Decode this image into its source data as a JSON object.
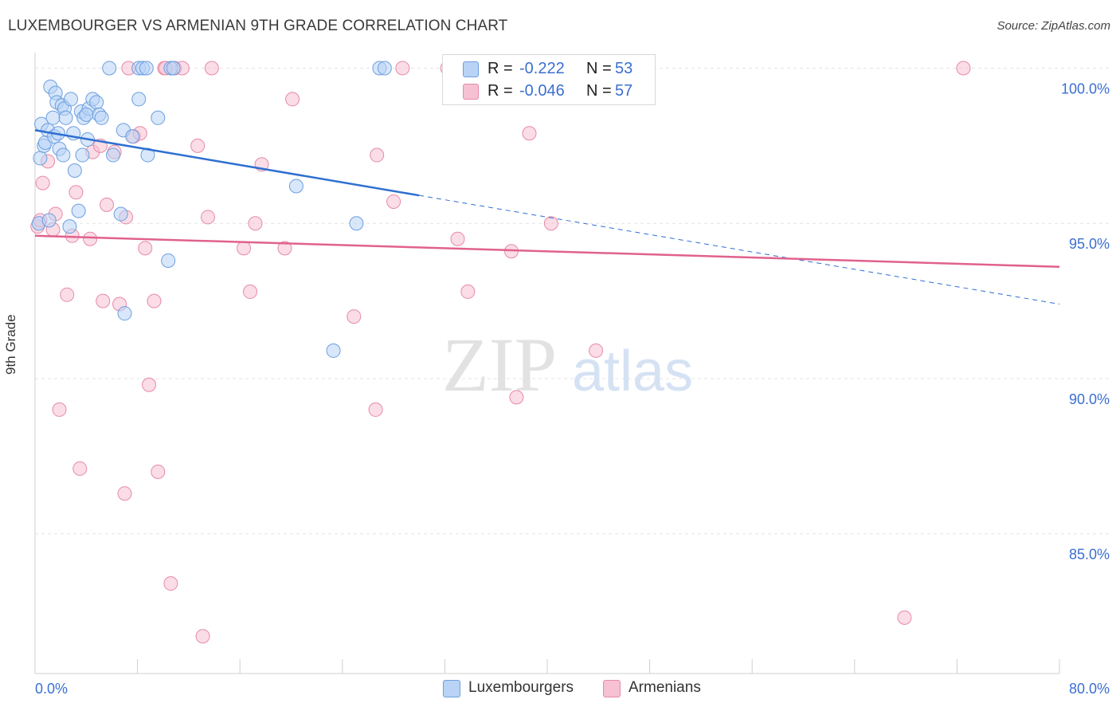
{
  "title": "LUXEMBOURGER VS ARMENIAN 9TH GRADE CORRELATION CHART",
  "source": "Source: ZipAtlas.com",
  "watermark": {
    "zip": "ZIP",
    "atlas": "atlas"
  },
  "colors": {
    "blue_fill": "#b8d3f5",
    "blue_stroke": "#6d9fdf",
    "blue_line": "#2f6fd0",
    "pink_fill": "#f6c1d2",
    "pink_stroke": "#e78aa8",
    "pink_line": "#e0628c",
    "tick_label": "#3b6fd0",
    "grid": "#e3e3e3"
  },
  "legend": {
    "r_label": "R =",
    "n_label": "N =",
    "series": [
      {
        "name": "Luxembourgers",
        "r": "-0.222",
        "n": "53",
        "color": "#b8d3f5",
        "border": "#6d9fdf"
      },
      {
        "name": "Armenians",
        "r": "-0.046",
        "n": "57",
        "color": "#f6c1d2",
        "border": "#e78aa8"
      }
    ]
  },
  "chart_data": {
    "type": "scatter",
    "title": "LUXEMBOURGER VS ARMENIAN 9TH GRADE CORRELATION CHART",
    "xlabel": "",
    "ylabel": "9th Grade",
    "xlim": [
      0,
      80
    ],
    "ylim": [
      80.5,
      100.5
    ],
    "x_tick_labels": [
      "0.0%",
      "80.0%"
    ],
    "y_ticks": [
      85,
      90,
      95,
      100
    ],
    "y_tick_labels": [
      "85.0%",
      "90.0%",
      "95.0%",
      "100.0%"
    ],
    "grid": true,
    "series": [
      {
        "name": "Luxembourgers",
        "points": [
          [
            0.3,
            95.0
          ],
          [
            0.4,
            97.1
          ],
          [
            0.5,
            98.2
          ],
          [
            0.7,
            97.5
          ],
          [
            0.8,
            97.6
          ],
          [
            1.0,
            98.0
          ],
          [
            1.1,
            95.1
          ],
          [
            1.2,
            99.4
          ],
          [
            1.4,
            98.4
          ],
          [
            1.5,
            97.8
          ],
          [
            1.6,
            99.2
          ],
          [
            1.7,
            98.9
          ],
          [
            1.8,
            97.9
          ],
          [
            1.9,
            97.4
          ],
          [
            2.1,
            98.8
          ],
          [
            2.2,
            97.2
          ],
          [
            2.3,
            98.7
          ],
          [
            2.4,
            98.4
          ],
          [
            2.7,
            94.9
          ],
          [
            2.8,
            99.0
          ],
          [
            3.0,
            97.9
          ],
          [
            3.1,
            96.7
          ],
          [
            3.4,
            95.4
          ],
          [
            3.6,
            98.6
          ],
          [
            3.7,
            97.2
          ],
          [
            3.8,
            98.4
          ],
          [
            4.1,
            97.7
          ],
          [
            4.2,
            98.7
          ],
          [
            4.5,
            99.0
          ],
          [
            4.8,
            98.9
          ],
          [
            5.0,
            98.5
          ],
          [
            5.2,
            98.4
          ],
          [
            5.8,
            100.0
          ],
          [
            6.1,
            97.2
          ],
          [
            6.7,
            95.3
          ],
          [
            6.9,
            98.0
          ],
          [
            7.0,
            92.1
          ],
          [
            7.6,
            97.8
          ],
          [
            8.1,
            99.0
          ],
          [
            8.1,
            100.0
          ],
          [
            8.4,
            100.0
          ],
          [
            8.7,
            100.0
          ],
          [
            8.8,
            97.2
          ],
          [
            9.6,
            98.4
          ],
          [
            10.4,
            93.8
          ],
          [
            10.6,
            100.0
          ],
          [
            10.8,
            100.0
          ],
          [
            20.4,
            96.2
          ],
          [
            23.3,
            90.9
          ],
          [
            25.1,
            95.0
          ],
          [
            26.9,
            100.0
          ],
          [
            27.3,
            100.0
          ],
          [
            4.0,
            98.5
          ]
        ]
      },
      {
        "name": "Armenians",
        "points": [
          [
            0.2,
            94.9
          ],
          [
            0.4,
            95.1
          ],
          [
            0.6,
            96.3
          ],
          [
            1.0,
            97.0
          ],
          [
            1.4,
            94.8
          ],
          [
            1.6,
            95.3
          ],
          [
            1.9,
            89.0
          ],
          [
            2.5,
            92.7
          ],
          [
            2.9,
            94.6
          ],
          [
            3.2,
            96.0
          ],
          [
            3.5,
            87.1
          ],
          [
            4.3,
            94.5
          ],
          [
            4.5,
            97.3
          ],
          [
            5.1,
            97.5
          ],
          [
            5.3,
            92.5
          ],
          [
            5.6,
            95.6
          ],
          [
            6.2,
            97.3
          ],
          [
            6.6,
            92.4
          ],
          [
            7.0,
            86.3
          ],
          [
            7.1,
            95.2
          ],
          [
            7.7,
            97.8
          ],
          [
            8.2,
            97.9
          ],
          [
            8.6,
            94.2
          ],
          [
            8.9,
            89.8
          ],
          [
            9.3,
            92.5
          ],
          [
            9.6,
            87.0
          ],
          [
            10.1,
            100.0
          ],
          [
            10.6,
            83.4
          ],
          [
            10.9,
            100.0
          ],
          [
            11.5,
            100.0
          ],
          [
            12.7,
            97.5
          ],
          [
            13.1,
            81.7
          ],
          [
            13.5,
            95.2
          ],
          [
            13.8,
            100.0
          ],
          [
            16.3,
            94.2
          ],
          [
            16.8,
            92.8
          ],
          [
            17.2,
            95.0
          ],
          [
            17.7,
            96.9
          ],
          [
            19.5,
            94.2
          ],
          [
            20.1,
            99.0
          ],
          [
            24.9,
            92.0
          ],
          [
            26.6,
            89.0
          ],
          [
            26.7,
            97.2
          ],
          [
            28.0,
            95.7
          ],
          [
            28.7,
            100.0
          ],
          [
            32.2,
            100.0
          ],
          [
            33.0,
            94.5
          ],
          [
            33.8,
            92.8
          ],
          [
            37.2,
            94.1
          ],
          [
            37.6,
            89.4
          ],
          [
            38.6,
            97.9
          ],
          [
            40.3,
            95.0
          ],
          [
            43.8,
            90.9
          ],
          [
            67.9,
            82.3
          ],
          [
            72.5,
            100.0
          ],
          [
            10.2,
            100.0
          ],
          [
            7.3,
            100.0
          ]
        ]
      }
    ],
    "trendlines": [
      {
        "series": "Luxembourgers",
        "x0": 0.0,
        "y0": 98.0,
        "x1": 30.0,
        "y1": 95.9,
        "dashed_to_x": 80.0,
        "dashed_to_y": 92.4
      },
      {
        "series": "Armenians",
        "x0": 0.0,
        "y0": 94.6,
        "x1": 80.0,
        "y1": 93.6
      }
    ]
  }
}
